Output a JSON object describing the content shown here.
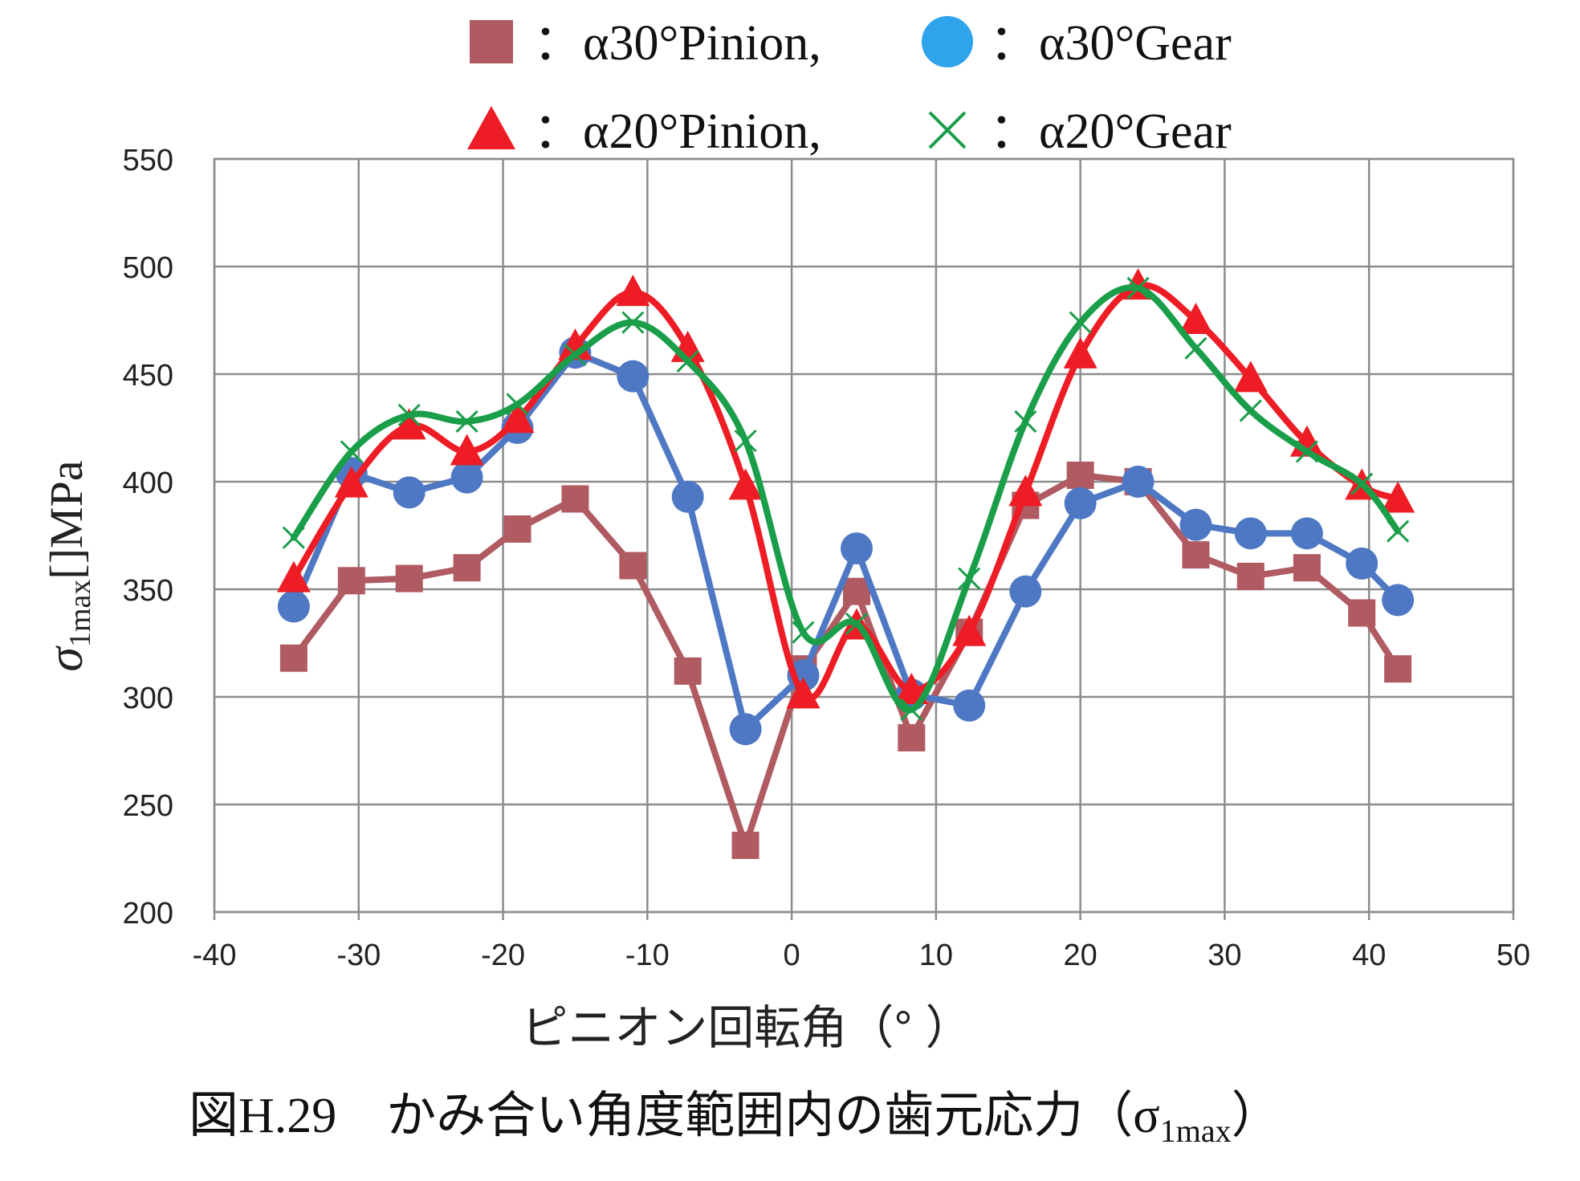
{
  "chart_data": {
    "type": "line",
    "ylabel_prefix": "σ",
    "ylabel_sub": "1max",
    "ylabel_suffix": "[]MPa",
    "xlabel": "ピニオン回転角（°  ）",
    "caption_prefix": "図H.29　かみ合い角度範囲内の歯元応力（σ",
    "caption_sub": "1max",
    "caption_suffix": "）",
    "xlim": [
      -40,
      50
    ],
    "ylim": [
      200,
      550
    ],
    "xticks": [
      "-40",
      "-30",
      "-20",
      "-10",
      "0",
      "10",
      "20",
      "30",
      "40",
      "50"
    ],
    "yticks": [
      "200",
      "250",
      "300",
      "350",
      "400",
      "450",
      "500",
      "550"
    ],
    "grid": true,
    "legend_position": "top",
    "series": [
      {
        "name": "：α30°Pinion,",
        "marker": "square",
        "color": "#b05a62",
        "smooth": false,
        "x": [
          -34.5,
          -30.5,
          -26.5,
          -22.5,
          -19,
          -15,
          -11,
          -7.2,
          -3.2,
          0.8,
          4.5,
          8.3,
          12.3,
          16.2,
          20,
          24,
          28,
          31.8,
          35.7,
          39.5,
          42
        ],
        "y": [
          318,
          354,
          355,
          360,
          378,
          392,
          361,
          312,
          231,
          313,
          349,
          281,
          330,
          389,
          403,
          400,
          366,
          356,
          360,
          339,
          313
        ]
      },
      {
        "name": "：α30°Gear",
        "marker": "circle",
        "color": "#4f78c4",
        "smooth": false,
        "x": [
          -34.5,
          -30.5,
          -26.5,
          -22.5,
          -19,
          -15,
          -11,
          -7.2,
          -3.2,
          0.8,
          4.5,
          8.3,
          12.3,
          16.2,
          20,
          24,
          28,
          31.8,
          35.7,
          39.5,
          42
        ],
        "y": [
          342,
          404,
          395,
          402,
          425,
          460,
          449,
          393,
          285,
          310,
          369,
          301,
          296,
          349,
          390,
          400,
          380,
          376,
          376,
          362,
          345
        ]
      },
      {
        "name": "：α20°Pinion,",
        "marker": "triangle",
        "color": "#ee1c24",
        "smooth": true,
        "x": [
          -34.5,
          -30.5,
          -26.5,
          -22.5,
          -19,
          -15,
          -11,
          -7.2,
          -3.2,
          0.8,
          4.5,
          8.3,
          12.3,
          16.2,
          20,
          24,
          28,
          31.8,
          35.7,
          39.5,
          42
        ],
        "y": [
          355,
          399,
          426,
          414,
          429,
          463,
          488,
          462,
          398,
          301,
          333,
          303,
          330,
          395,
          459,
          491,
          475,
          448,
          418,
          398,
          392
        ]
      },
      {
        "name": "：α20°Gear",
        "marker": "x",
        "color": "#1a9e4a",
        "smooth": true,
        "x": [
          -34.5,
          -30.5,
          -26.5,
          -22.5,
          -19,
          -15,
          -11,
          -7.2,
          -3.2,
          0.8,
          4.5,
          8.3,
          12.3,
          16.2,
          20,
          24,
          28,
          31.8,
          35.7,
          39.5,
          42
        ],
        "y": [
          374,
          414,
          431,
          428,
          436,
          459,
          474,
          456,
          419,
          330,
          334,
          294,
          355,
          428,
          474,
          490,
          462,
          433,
          414,
          399,
          377
        ]
      }
    ]
  }
}
